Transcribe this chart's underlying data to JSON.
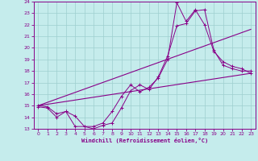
{
  "xlabel": "Windchill (Refroidissement éolien,°C)",
  "bg_color": "#c5ecec",
  "grid_color": "#9ecfcf",
  "line_color": "#880088",
  "xlim": [
    -0.5,
    23.5
  ],
  "ylim": [
    13,
    24
  ],
  "xticks": [
    0,
    1,
    2,
    3,
    4,
    5,
    6,
    7,
    8,
    9,
    10,
    11,
    12,
    13,
    14,
    15,
    16,
    17,
    18,
    19,
    20,
    21,
    22,
    23
  ],
  "yticks": [
    13,
    14,
    15,
    16,
    17,
    18,
    19,
    20,
    21,
    22,
    23,
    24
  ],
  "line1_x": [
    0,
    1,
    2,
    3,
    4,
    5,
    6,
    7,
    8,
    9,
    10,
    11,
    12,
    13,
    14,
    15,
    16,
    17,
    18,
    19,
    20,
    21,
    22,
    23
  ],
  "line1_y": [
    14.9,
    14.8,
    14.0,
    14.5,
    13.2,
    13.2,
    13.0,
    13.3,
    13.5,
    14.8,
    16.3,
    16.8,
    16.4,
    17.5,
    19.3,
    21.9,
    22.1,
    23.2,
    23.3,
    19.8,
    18.5,
    18.2,
    18.0,
    18.0
  ],
  "line2_x": [
    0,
    1,
    2,
    3,
    4,
    5,
    6,
    7,
    8,
    9,
    10,
    11,
    12,
    13,
    14,
    15,
    16,
    17,
    18,
    19,
    20,
    21,
    22,
    23
  ],
  "line2_y": [
    15.0,
    14.9,
    14.3,
    14.5,
    14.1,
    13.2,
    13.2,
    13.5,
    14.5,
    15.8,
    16.8,
    16.2,
    16.6,
    17.4,
    19.0,
    23.9,
    22.3,
    23.3,
    22.0,
    19.7,
    18.8,
    18.4,
    18.2,
    17.8
  ],
  "line3_x": [
    0,
    23
  ],
  "line3_y": [
    15.0,
    17.8
  ],
  "line4_x": [
    0,
    23
  ],
  "line4_y": [
    15.0,
    21.6
  ]
}
